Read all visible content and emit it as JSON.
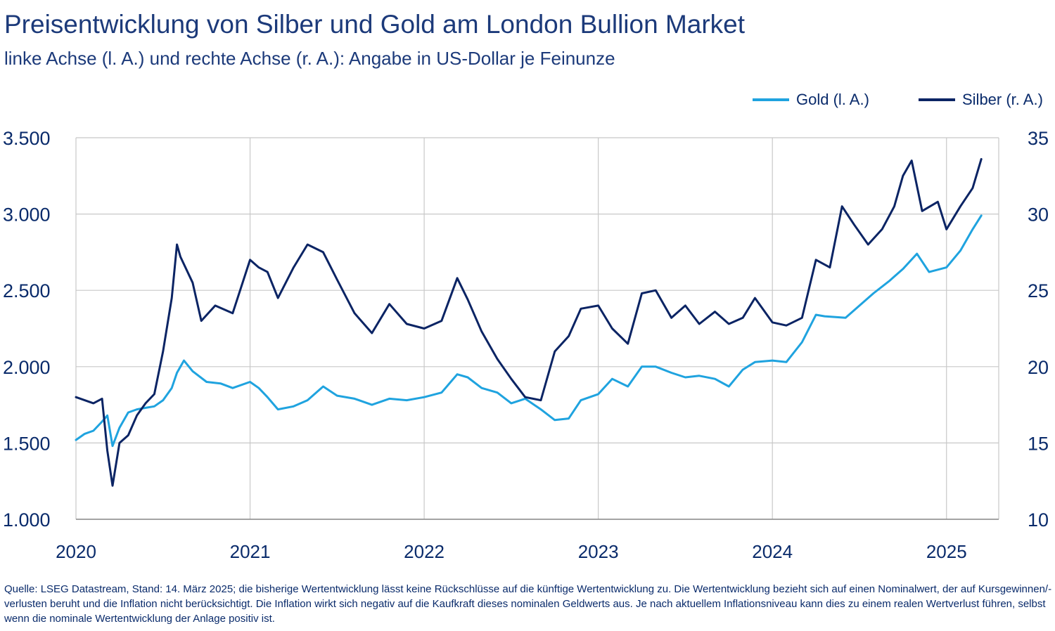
{
  "title": "Preisentwicklung von Silber und Gold am London Bullion Market",
  "subtitle": "linke Achse (l. A.) und rechte Achse (r. A.): Angabe in US-Dollar je Feinunze",
  "footnote": "Quelle: LSEG Datastream, Stand: 14. März 2025; die bisherige Wertentwicklung lässt keine Rückschlüsse auf die künftige Wertentwicklung zu. Die Wertentwicklung bezieht sich auf einen Nominalwert, der auf Kursgewinnen/-verlusten beruht und die Inflation nicht berücksichtigt. Die Inflation wirkt sich negativ auf die Kaufkraft dieses nominalen Geldwerts aus. Je nach aktuellem Inflationsniveau kann dies zu einem realen Wertverlust führen, selbst wenn die nominale Wertentwicklung der Anlage positiv ist.",
  "colors": {
    "gold": "#1fa3df",
    "silver": "#0b2464",
    "grid": "#c8c8c8",
    "text": "#0a2b6b"
  },
  "chart_data": {
    "type": "line",
    "x_ticks": [
      "2020",
      "2021",
      "2022",
      "2023",
      "2024",
      "2025"
    ],
    "y_left": {
      "lim": [
        1000,
        3500
      ],
      "ticks": [
        "1.000",
        "1.500",
        "2.000",
        "2.500",
        "3.000",
        "3.500"
      ]
    },
    "y_right": {
      "lim": [
        10,
        35
      ],
      "ticks": [
        "10",
        "15",
        "20",
        "25",
        "30",
        "35"
      ]
    },
    "grid": true,
    "legend_position": "top-right",
    "x_range": [
      2020.0,
      2025.3
    ],
    "series": [
      {
        "name": "Gold (l. A.)",
        "axis": "left",
        "color": "#1fa3df",
        "x": [
          2020.0,
          2020.05,
          2020.1,
          2020.15,
          2020.18,
          2020.21,
          2020.25,
          2020.3,
          2020.35,
          2020.4,
          2020.45,
          2020.5,
          2020.55,
          2020.58,
          2020.62,
          2020.67,
          2020.75,
          2020.83,
          2020.9,
          2021.0,
          2021.05,
          2021.1,
          2021.16,
          2021.25,
          2021.33,
          2021.42,
          2021.5,
          2021.6,
          2021.7,
          2021.8,
          2021.9,
          2022.0,
          2022.1,
          2022.19,
          2022.25,
          2022.33,
          2022.42,
          2022.5,
          2022.58,
          2022.67,
          2022.75,
          2022.83,
          2022.9,
          2023.0,
          2023.08,
          2023.17,
          2023.25,
          2023.33,
          2023.42,
          2023.5,
          2023.58,
          2023.67,
          2023.75,
          2023.83,
          2023.9,
          2024.0,
          2024.08,
          2024.17,
          2024.25,
          2024.3,
          2024.42,
          2024.5,
          2024.58,
          2024.67,
          2024.75,
          2024.83,
          2024.9,
          2025.0,
          2025.08,
          2025.15,
          2025.2
        ],
        "y": [
          1520,
          1560,
          1580,
          1640,
          1680,
          1480,
          1600,
          1700,
          1720,
          1730,
          1740,
          1780,
          1860,
          1960,
          2040,
          1970,
          1900,
          1890,
          1860,
          1900,
          1860,
          1800,
          1720,
          1740,
          1780,
          1870,
          1810,
          1790,
          1750,
          1790,
          1780,
          1800,
          1830,
          1950,
          1930,
          1860,
          1830,
          1760,
          1790,
          1720,
          1650,
          1660,
          1780,
          1820,
          1920,
          1870,
          2000,
          2000,
          1960,
          1930,
          1940,
          1920,
          1870,
          1980,
          2030,
          2040,
          2030,
          2160,
          2340,
          2330,
          2320,
          2400,
          2480,
          2560,
          2640,
          2740,
          2620,
          2650,
          2760,
          2900,
          2990
        ]
      },
      {
        "name": "Silber (r. A.)",
        "axis": "right",
        "color": "#0b2464",
        "x": [
          2020.0,
          2020.05,
          2020.1,
          2020.15,
          2020.18,
          2020.21,
          2020.25,
          2020.3,
          2020.35,
          2020.4,
          2020.45,
          2020.5,
          2020.55,
          2020.58,
          2020.6,
          2020.67,
          2020.72,
          2020.8,
          2020.9,
          2021.0,
          2021.05,
          2021.1,
          2021.16,
          2021.25,
          2021.33,
          2021.42,
          2021.5,
          2021.6,
          2021.7,
          2021.8,
          2021.9,
          2022.0,
          2022.1,
          2022.19,
          2022.25,
          2022.33,
          2022.42,
          2022.5,
          2022.58,
          2022.67,
          2022.75,
          2022.83,
          2022.9,
          2023.0,
          2023.08,
          2023.17,
          2023.25,
          2023.33,
          2023.42,
          2023.5,
          2023.58,
          2023.67,
          2023.75,
          2023.83,
          2023.9,
          2024.0,
          2024.08,
          2024.17,
          2024.25,
          2024.33,
          2024.4,
          2024.47,
          2024.55,
          2024.63,
          2024.7,
          2024.75,
          2024.8,
          2024.86,
          2024.95,
          2025.0,
          2025.08,
          2025.15,
          2025.2
        ],
        "y": [
          18.0,
          17.8,
          17.6,
          17.9,
          14.5,
          12.2,
          15.0,
          15.5,
          16.8,
          17.6,
          18.2,
          21.0,
          24.5,
          28.0,
          27.2,
          25.5,
          23.0,
          24.0,
          23.5,
          27.0,
          26.5,
          26.2,
          24.5,
          26.5,
          28.0,
          27.5,
          25.7,
          23.5,
          22.2,
          24.1,
          22.8,
          22.5,
          23.0,
          25.8,
          24.4,
          22.3,
          20.5,
          19.2,
          18.0,
          17.8,
          21.0,
          22.0,
          23.8,
          24.0,
          22.5,
          21.5,
          24.8,
          25.0,
          23.2,
          24.0,
          22.8,
          23.6,
          22.8,
          23.2,
          24.5,
          22.9,
          22.7,
          23.2,
          27.0,
          26.5,
          30.5,
          29.3,
          28.0,
          29.0,
          30.5,
          32.5,
          33.5,
          30.2,
          30.8,
          29.0,
          30.5,
          31.7,
          33.6
        ]
      }
    ]
  }
}
